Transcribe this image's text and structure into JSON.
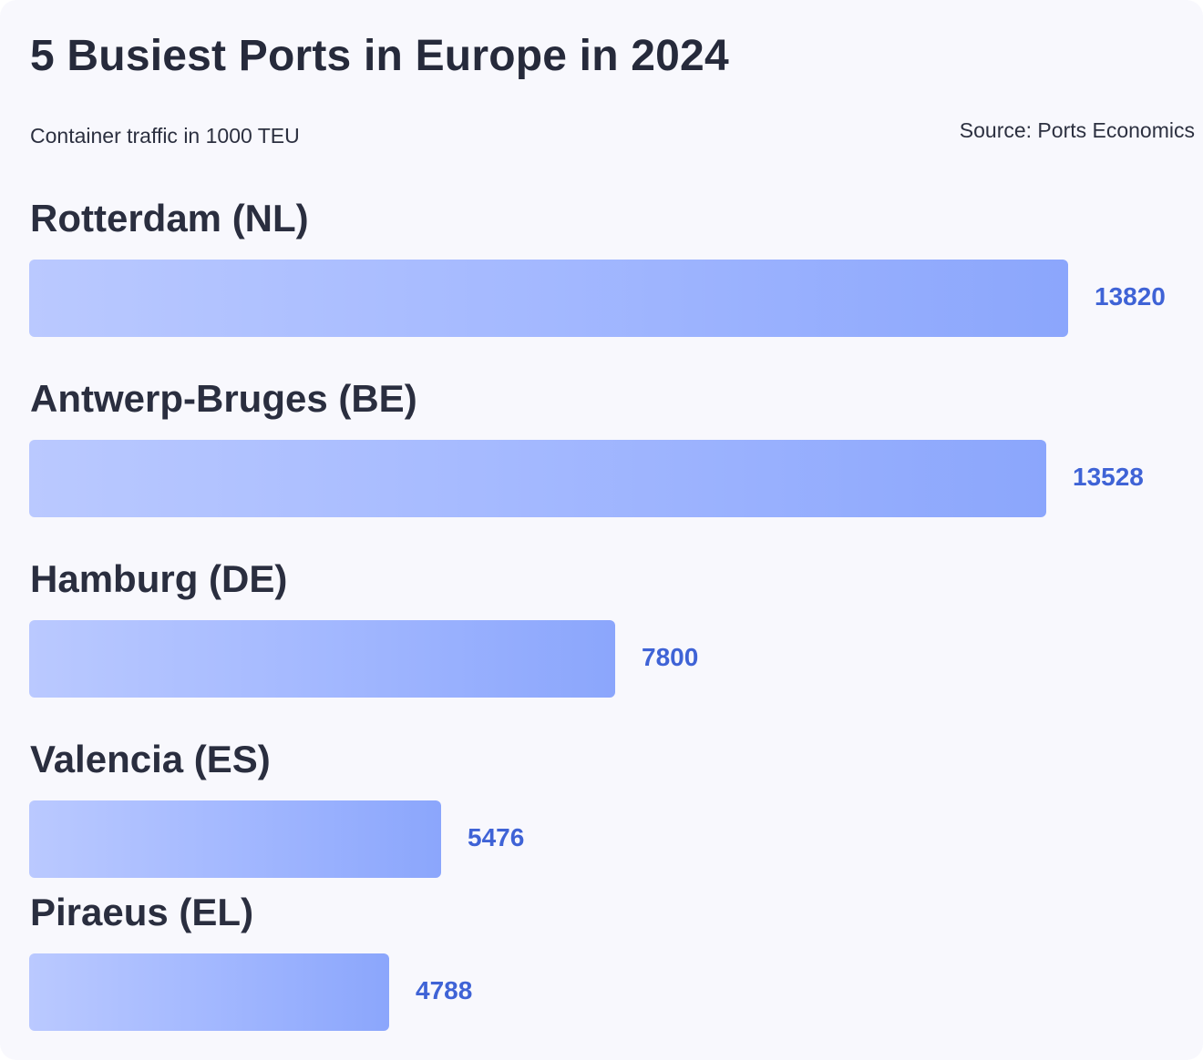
{
  "chart_data": {
    "type": "bar",
    "orientation": "horizontal",
    "title": "5 Busiest Ports in Europe in 2024",
    "subtitle": "Container traffic in 1000 TEU",
    "source": "Source: Ports Economics",
    "categories": [
      "Rotterdam (NL)",
      "Antwerp-Bruges (BE)",
      "Hamburg (DE)",
      "Valencia (ES)",
      "Piraeus (EL)"
    ],
    "values": [
      13820,
      13528,
      7800,
      5476,
      4788
    ],
    "xlim": [
      0,
      13820
    ],
    "grid": false,
    "legend": "none",
    "colors": {
      "bar_start": "#bac9ff",
      "bar_end": "#8ba6fc",
      "value_text": "#3f63d6",
      "label_text": "#2a2e3f",
      "background": "#f8f8fd"
    }
  }
}
